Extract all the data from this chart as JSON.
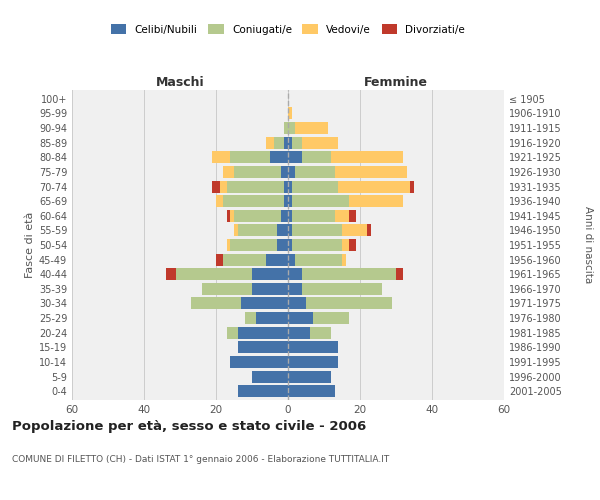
{
  "age_groups": [
    "0-4",
    "5-9",
    "10-14",
    "15-19",
    "20-24",
    "25-29",
    "30-34",
    "35-39",
    "40-44",
    "45-49",
    "50-54",
    "55-59",
    "60-64",
    "65-69",
    "70-74",
    "75-79",
    "80-84",
    "85-89",
    "90-94",
    "95-99",
    "100+"
  ],
  "birth_years": [
    "2001-2005",
    "1996-2000",
    "1991-1995",
    "1986-1990",
    "1981-1985",
    "1976-1980",
    "1971-1975",
    "1966-1970",
    "1961-1965",
    "1956-1960",
    "1951-1955",
    "1946-1950",
    "1941-1945",
    "1936-1940",
    "1931-1935",
    "1926-1930",
    "1921-1925",
    "1916-1920",
    "1911-1915",
    "1906-1910",
    "≤ 1905"
  ],
  "maschi": {
    "celibi": [
      14,
      10,
      16,
      14,
      14,
      9,
      13,
      10,
      10,
      6,
      3,
      3,
      2,
      1,
      1,
      2,
      5,
      1,
      0,
      0,
      0
    ],
    "coniugati": [
      0,
      0,
      0,
      0,
      3,
      3,
      14,
      14,
      21,
      12,
      13,
      11,
      13,
      17,
      16,
      13,
      11,
      3,
      1,
      0,
      0
    ],
    "vedovi": [
      0,
      0,
      0,
      0,
      0,
      0,
      0,
      0,
      0,
      0,
      1,
      1,
      1,
      2,
      2,
      3,
      5,
      2,
      0,
      0,
      0
    ],
    "divorziati": [
      0,
      0,
      0,
      0,
      0,
      0,
      0,
      0,
      3,
      2,
      0,
      0,
      1,
      0,
      2,
      0,
      0,
      0,
      0,
      0,
      0
    ]
  },
  "femmine": {
    "nubili": [
      13,
      12,
      14,
      14,
      6,
      7,
      5,
      4,
      4,
      2,
      1,
      1,
      1,
      1,
      1,
      2,
      4,
      1,
      0,
      0,
      0
    ],
    "coniugate": [
      0,
      0,
      0,
      0,
      6,
      10,
      24,
      22,
      26,
      13,
      14,
      14,
      12,
      16,
      13,
      11,
      8,
      3,
      2,
      0,
      0
    ],
    "vedove": [
      0,
      0,
      0,
      0,
      0,
      0,
      0,
      0,
      0,
      1,
      2,
      7,
      4,
      15,
      20,
      20,
      20,
      10,
      9,
      1,
      0
    ],
    "divorziate": [
      0,
      0,
      0,
      0,
      0,
      0,
      0,
      0,
      2,
      0,
      2,
      1,
      2,
      0,
      1,
      0,
      0,
      0,
      0,
      0,
      0
    ]
  },
  "colors": {
    "celibi": "#4472a8",
    "coniugati": "#b5c98e",
    "vedovi": "#ffc966",
    "divorziati": "#c0392b"
  },
  "title": "Popolazione per età, sesso e stato civile - 2006",
  "subtitle": "COMUNE DI FILETTO (CH) - Dati ISTAT 1° gennaio 2006 - Elaborazione TUTTITALIA.IT",
  "xlabel_left": "Maschi",
  "xlabel_right": "Femmine",
  "ylabel_left": "Fasce di età",
  "ylabel_right": "Anni di nascita",
  "xlim": 60,
  "bg_color": "#f0f0f0",
  "grid_color": "#cccccc"
}
